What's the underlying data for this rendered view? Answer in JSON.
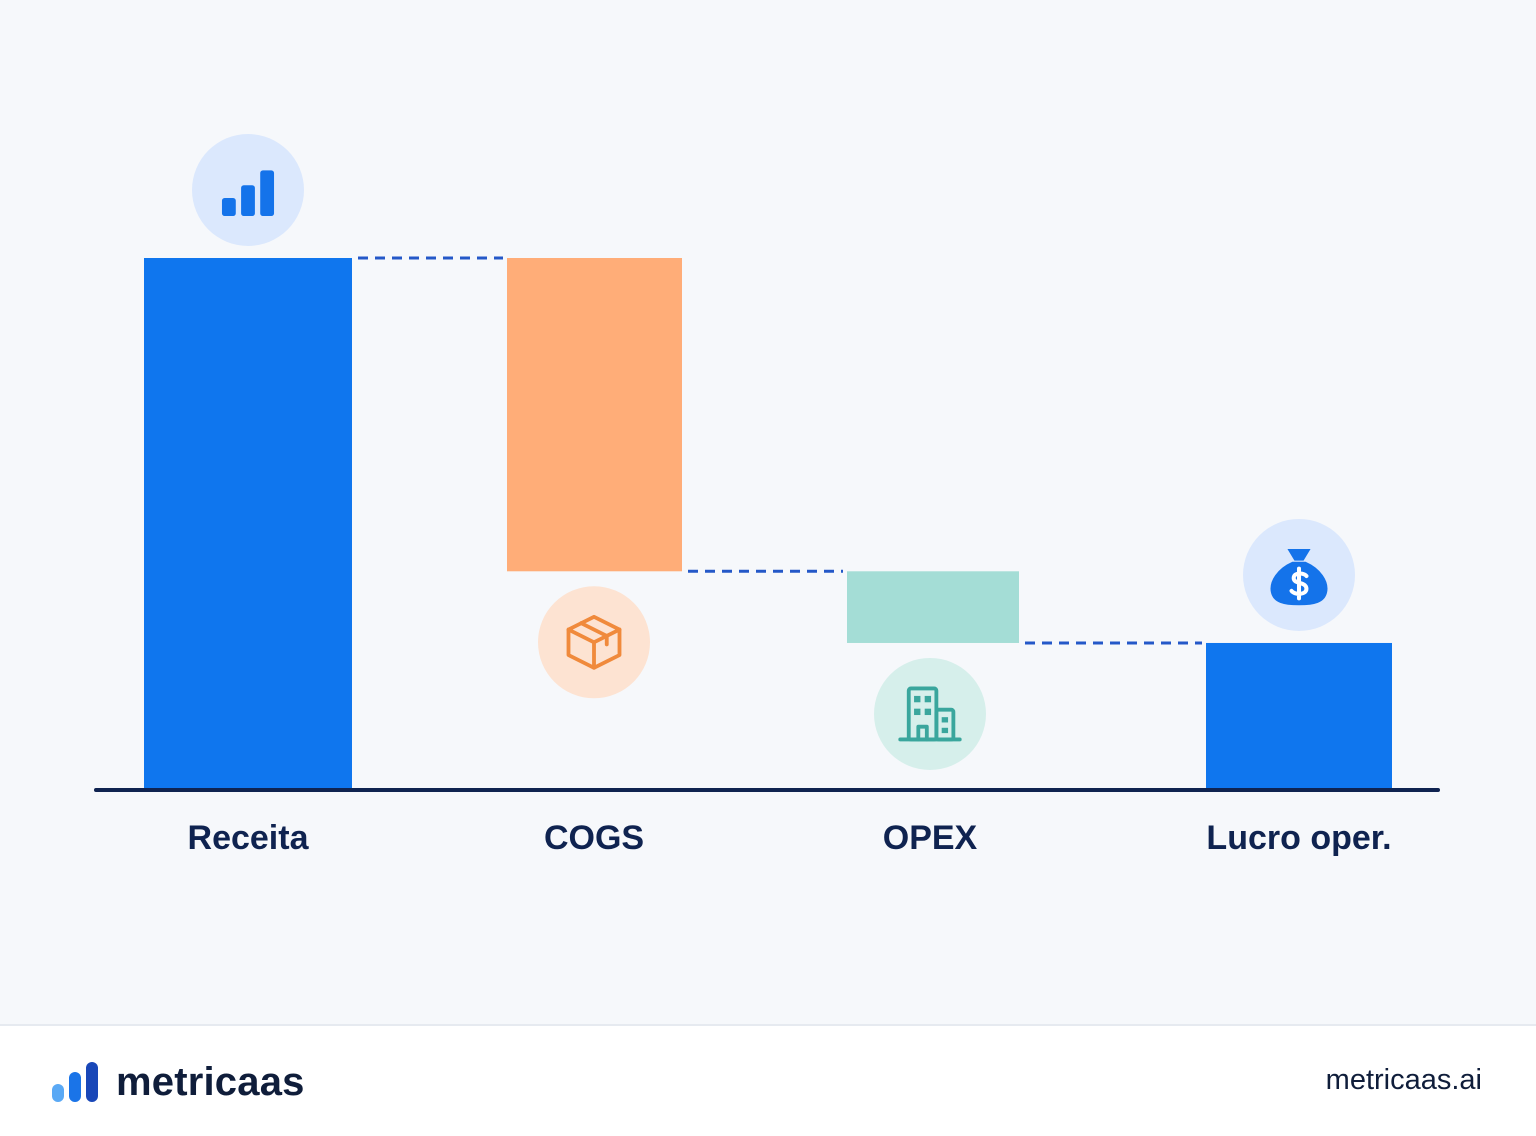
{
  "chart_data": {
    "type": "bar",
    "subtype": "waterfall",
    "categories": [
      "Receita",
      "COGS",
      "OPEX",
      "Lucro oper."
    ],
    "steps": [
      {
        "label": "Receita",
        "kind": "total",
        "value": 100,
        "color": "#0f76ee",
        "icon": "bar-chart-icon"
      },
      {
        "label": "COGS",
        "kind": "decrease",
        "value": -59,
        "color": "#ffad78",
        "icon": "package-box-icon"
      },
      {
        "label": "OPEX",
        "kind": "decrease",
        "value": -13.5,
        "color": "#a4ddd6",
        "icon": "office-building-icon"
      },
      {
        "label": "Lucro oper.",
        "kind": "total",
        "value": 27.5,
        "color": "#0f76ee",
        "icon": "money-bag-icon"
      }
    ],
    "ylim": [
      0,
      100
    ],
    "grid": false,
    "connector_style": "dashed",
    "connector_color": "#2458c8",
    "axis_color": "#0f2350"
  },
  "footer": {
    "brand_name": "metricaas",
    "site_url": "metricaas.ai",
    "logo_colors": [
      "#5aa9f5",
      "#1a74e8",
      "#1947b8"
    ]
  }
}
